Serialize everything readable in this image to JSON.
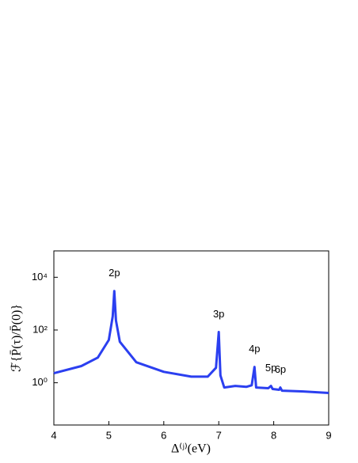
{
  "chart_data": {
    "type": "line",
    "color": "#2b3ff0",
    "yscale": "log",
    "xlabel": "Δ⁽ʲ⁾(eV)",
    "ylabel": "ℱ{P̄(τ)/P̄(0)}",
    "xlim": [
      4,
      9
    ],
    "xticks": [
      4,
      5,
      6,
      7,
      8,
      9
    ],
    "ylim": [
      0.025,
      100000
    ],
    "yticks": [
      {
        "value": 1,
        "label": "10⁰"
      },
      {
        "value": 100,
        "label": "10²"
      },
      {
        "value": 10000,
        "label": "10⁴"
      }
    ],
    "x": [
      4.0,
      4.5,
      4.8,
      5.0,
      5.07,
      5.1,
      5.13,
      5.2,
      5.5,
      6.0,
      6.5,
      6.8,
      6.95,
      7.0,
      7.03,
      7.1,
      7.3,
      7.5,
      7.6,
      7.65,
      7.68,
      7.9,
      7.95,
      7.98,
      8.1,
      8.12,
      8.15,
      8.5,
      9.0
    ],
    "values": [
      2.3,
      4.3,
      9,
      42,
      330,
      3000,
      230,
      36,
      6,
      2.6,
      1.7,
      1.7,
      3.7,
      84,
      1.9,
      0.66,
      0.76,
      0.7,
      0.8,
      4,
      0.66,
      0.62,
      0.76,
      0.58,
      0.54,
      0.66,
      0.5,
      0.47,
      0.41
    ],
    "annotations": [
      {
        "text": "2p",
        "x": 5.1
      },
      {
        "text": "3p",
        "x": 7.0
      },
      {
        "text": "4p",
        "x": 7.65
      },
      {
        "text": "5p",
        "x": 7.95
      },
      {
        "text": "6p",
        "x": 8.12
      }
    ]
  }
}
